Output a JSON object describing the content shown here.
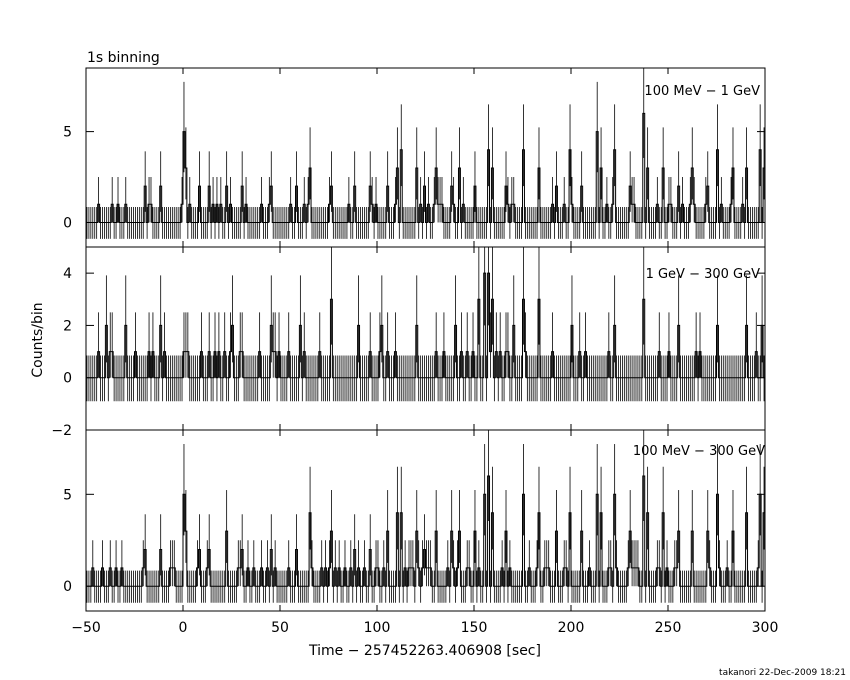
{
  "header": {
    "binning_label": "1s binning"
  },
  "footer": {
    "credit": "takanori 22-Dec-2009 18:21"
  },
  "chart_data": {
    "type": "line",
    "subtype": "step-histogram with error bars",
    "xlabel": "Time − 257452263.406908 [sec]",
    "ylabel": "Counts/bin",
    "xlim": [
      -50,
      300
    ],
    "x_ticks": [
      -50,
      0,
      50,
      100,
      150,
      200,
      250,
      300
    ],
    "x_tick_labels": [
      "−50",
      "0",
      "50",
      "100",
      "150",
      "200",
      "250",
      "300"
    ],
    "panels": [
      {
        "label": "100 MeV − 1 GeV",
        "ylim": [
          -1.35,
          8.5
        ],
        "y_ticks": [
          0,
          5
        ],
        "y_tick_labels": [
          "0",
          "5"
        ],
        "spikes": [
          {
            "x": 0,
            "v": 5
          },
          {
            "x": 1,
            "v": 3
          },
          {
            "x": -20,
            "v": 2
          },
          {
            "x": -12,
            "v": 2
          },
          {
            "x": 8,
            "v": 2
          },
          {
            "x": 13,
            "v": 2
          },
          {
            "x": 22,
            "v": 2
          },
          {
            "x": 30,
            "v": 2
          },
          {
            "x": 45,
            "v": 2
          },
          {
            "x": 58,
            "v": 2
          },
          {
            "x": 65,
            "v": 3
          },
          {
            "x": 76,
            "v": 2
          },
          {
            "x": 88,
            "v": 2
          },
          {
            "x": 96,
            "v": 2
          },
          {
            "x": 105,
            "v": 2
          },
          {
            "x": 110,
            "v": 3
          },
          {
            "x": 112,
            "v": 4
          },
          {
            "x": 120,
            "v": 3
          },
          {
            "x": 124,
            "v": 2
          },
          {
            "x": 130,
            "v": 3
          },
          {
            "x": 138,
            "v": 2
          },
          {
            "x": 142,
            "v": 3
          },
          {
            "x": 150,
            "v": 2
          },
          {
            "x": 157,
            "v": 4
          },
          {
            "x": 159,
            "v": 3
          },
          {
            "x": 166,
            "v": 2
          },
          {
            "x": 175,
            "v": 4
          },
          {
            "x": 183,
            "v": 3
          },
          {
            "x": 192,
            "v": 2
          },
          {
            "x": 199,
            "v": 4
          },
          {
            "x": 205,
            "v": 2
          },
          {
            "x": 213,
            "v": 5
          },
          {
            "x": 215,
            "v": 3
          },
          {
            "x": 222,
            "v": 4
          },
          {
            "x": 230,
            "v": 2
          },
          {
            "x": 237,
            "v": 6
          },
          {
            "x": 239,
            "v": 3
          },
          {
            "x": 247,
            "v": 3
          },
          {
            "x": 255,
            "v": 2
          },
          {
            "x": 262,
            "v": 3
          },
          {
            "x": 270,
            "v": 2
          },
          {
            "x": 275,
            "v": 4
          },
          {
            "x": 283,
            "v": 3
          },
          {
            "x": 290,
            "v": 3
          },
          {
            "x": 297,
            "v": 4
          },
          {
            "x": 299,
            "v": 3
          }
        ]
      },
      {
        "label": "1 GeV − 300 GeV",
        "ylim": [
          -2,
          5
        ],
        "y_ticks": [
          -2,
          0,
          2,
          4
        ],
        "y_tick_labels": [
          "−2",
          "0",
          "2",
          "4"
        ],
        "spikes": [
          {
            "x": -40,
            "v": 2
          },
          {
            "x": -30,
            "v": 2
          },
          {
            "x": -12,
            "v": 2
          },
          {
            "x": 0,
            "v": 1
          },
          {
            "x": 25,
            "v": 2
          },
          {
            "x": 45,
            "v": 2
          },
          {
            "x": 60,
            "v": 2
          },
          {
            "x": 76,
            "v": 3
          },
          {
            "x": 90,
            "v": 2
          },
          {
            "x": 102,
            "v": 2
          },
          {
            "x": 120,
            "v": 2
          },
          {
            "x": 140,
            "v": 2
          },
          {
            "x": 152,
            "v": 3
          },
          {
            "x": 155,
            "v": 4
          },
          {
            "x": 157,
            "v": 4
          },
          {
            "x": 159,
            "v": 3
          },
          {
            "x": 170,
            "v": 2
          },
          {
            "x": 175,
            "v": 3
          },
          {
            "x": 183,
            "v": 3
          },
          {
            "x": 200,
            "v": 2
          },
          {
            "x": 222,
            "v": 2
          },
          {
            "x": 237,
            "v": 3
          },
          {
            "x": 255,
            "v": 2
          },
          {
            "x": 275,
            "v": 2
          },
          {
            "x": 290,
            "v": 2
          },
          {
            "x": 298,
            "v": 2
          }
        ]
      },
      {
        "label": "100 MeV − 300 GeV",
        "ylim": [
          -1.35,
          8.5
        ],
        "y_ticks": [
          0,
          5
        ],
        "y_tick_labels": [
          "0",
          "5"
        ],
        "spikes": [
          {
            "x": 0,
            "v": 5
          },
          {
            "x": 1,
            "v": 3
          },
          {
            "x": -20,
            "v": 2
          },
          {
            "x": -12,
            "v": 2
          },
          {
            "x": 8,
            "v": 2
          },
          {
            "x": 13,
            "v": 2
          },
          {
            "x": 22,
            "v": 3
          },
          {
            "x": 30,
            "v": 2
          },
          {
            "x": 45,
            "v": 2
          },
          {
            "x": 58,
            "v": 2
          },
          {
            "x": 65,
            "v": 4
          },
          {
            "x": 76,
            "v": 3
          },
          {
            "x": 88,
            "v": 2
          },
          {
            "x": 96,
            "v": 2
          },
          {
            "x": 105,
            "v": 3
          },
          {
            "x": 110,
            "v": 4
          },
          {
            "x": 112,
            "v": 4
          },
          {
            "x": 120,
            "v": 3
          },
          {
            "x": 124,
            "v": 2
          },
          {
            "x": 130,
            "v": 3
          },
          {
            "x": 138,
            "v": 3
          },
          {
            "x": 142,
            "v": 3
          },
          {
            "x": 150,
            "v": 3
          },
          {
            "x": 155,
            "v": 5
          },
          {
            "x": 157,
            "v": 6
          },
          {
            "x": 159,
            "v": 4
          },
          {
            "x": 166,
            "v": 3
          },
          {
            "x": 175,
            "v": 5
          },
          {
            "x": 183,
            "v": 4
          },
          {
            "x": 192,
            "v": 3
          },
          {
            "x": 199,
            "v": 4
          },
          {
            "x": 205,
            "v": 3
          },
          {
            "x": 213,
            "v": 5
          },
          {
            "x": 215,
            "v": 4
          },
          {
            "x": 222,
            "v": 5
          },
          {
            "x": 230,
            "v": 3
          },
          {
            "x": 237,
            "v": 6
          },
          {
            "x": 239,
            "v": 4
          },
          {
            "x": 247,
            "v": 4
          },
          {
            "x": 255,
            "v": 3
          },
          {
            "x": 262,
            "v": 3
          },
          {
            "x": 270,
            "v": 3
          },
          {
            "x": 275,
            "v": 5
          },
          {
            "x": 283,
            "v": 3
          },
          {
            "x": 290,
            "v": 4
          },
          {
            "x": 297,
            "v": 5
          },
          {
            "x": 299,
            "v": 4
          }
        ]
      }
    ]
  }
}
